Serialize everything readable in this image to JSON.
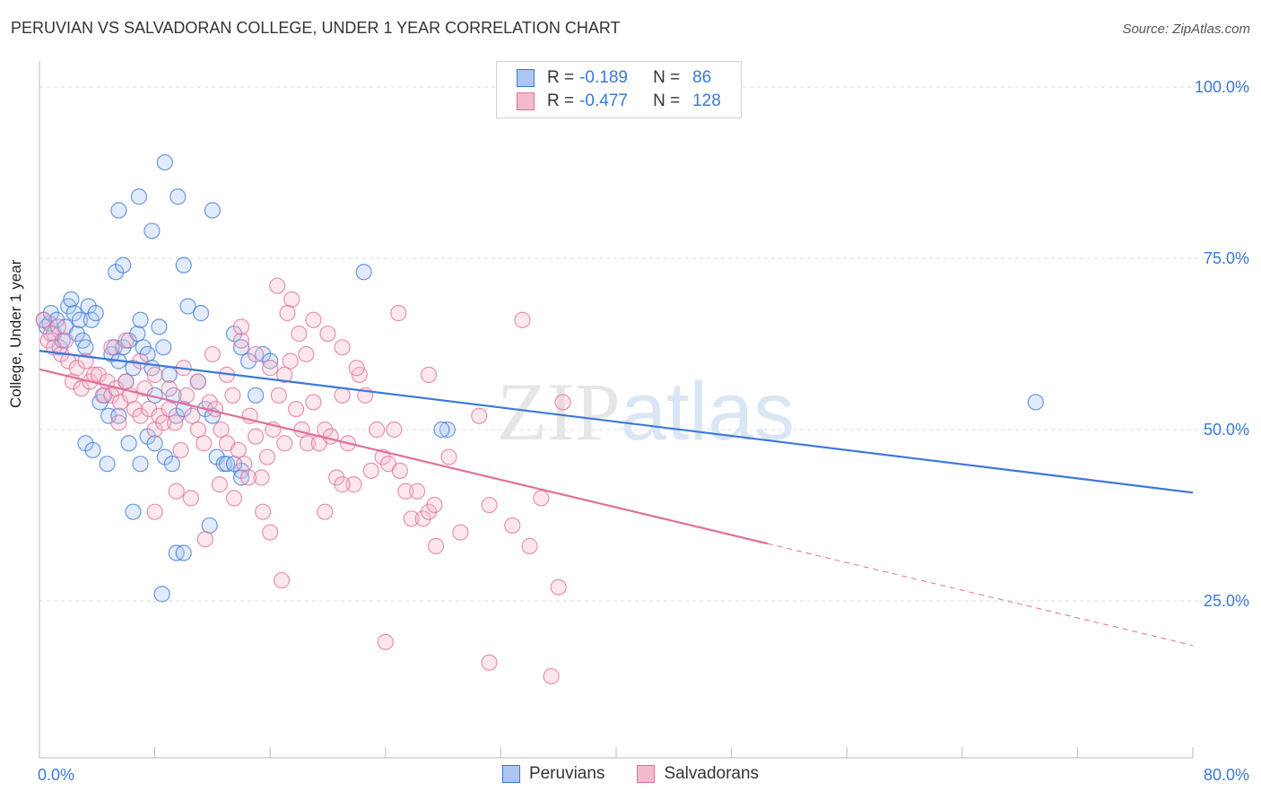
{
  "chart_data": {
    "type": "scatter",
    "title": "PERUVIAN VS SALVADORAN COLLEGE, UNDER 1 YEAR CORRELATION CHART",
    "source": "Source: ZipAtlas.com",
    "xlabel": "",
    "ylabel": "College, Under 1 year",
    "xlim": [
      0,
      80
    ],
    "ylim": [
      0,
      105
    ],
    "x_tick_labels": {
      "min": "0.0%",
      "max": "80.0%"
    },
    "y_ticks": [
      {
        "value": 100,
        "label": "100.0%"
      },
      {
        "value": 75,
        "label": "75.0%"
      },
      {
        "value": 50,
        "label": "50.0%"
      },
      {
        "value": 25,
        "label": "25.0%"
      }
    ],
    "watermark": "ZIPatlas",
    "legend": [
      {
        "name": "Peruvians",
        "r_label": "R =",
        "r": "-0.189",
        "n_label": "N =",
        "n": "86",
        "color": "#3b78d8",
        "fill": "#a9c7f0"
      },
      {
        "name": "Salvadorans",
        "r_label": "R =",
        "r": "-0.477",
        "n_label": "N =",
        "n": "128",
        "color": "#e0709a",
        "fill": "#f5b9cc"
      }
    ],
    "series": [
      {
        "name": "Peruvians",
        "trend": {
          "x0": 0,
          "y0": 61.5,
          "x1": 80,
          "y1": 40.8,
          "solid_to": 80
        },
        "points": [
          [
            0.3,
            66
          ],
          [
            0.5,
            65
          ],
          [
            0.7,
            65.5
          ],
          [
            0.8,
            67
          ],
          [
            1,
            64
          ],
          [
            1.2,
            66
          ],
          [
            1.4,
            62
          ],
          [
            1.6,
            63
          ],
          [
            1.8,
            65
          ],
          [
            2,
            68
          ],
          [
            2.2,
            69
          ],
          [
            2.4,
            67
          ],
          [
            2.6,
            64
          ],
          [
            2.8,
            66
          ],
          [
            3,
            63
          ],
          [
            3.2,
            62
          ],
          [
            3.4,
            68
          ],
          [
            3.6,
            66
          ],
          [
            3.9,
            67
          ],
          [
            4.2,
            54
          ],
          [
            4.5,
            55
          ],
          [
            4.8,
            52
          ],
          [
            5,
            61
          ],
          [
            5.2,
            62
          ],
          [
            5.5,
            60
          ],
          [
            5.8,
            62
          ],
          [
            6,
            57
          ],
          [
            6.2,
            63
          ],
          [
            6.5,
            59
          ],
          [
            6.8,
            64
          ],
          [
            7,
            66
          ],
          [
            7.2,
            62
          ],
          [
            7.5,
            61
          ],
          [
            7.8,
            59
          ],
          [
            8,
            55
          ],
          [
            8.3,
            65
          ],
          [
            8.6,
            62
          ],
          [
            9,
            58
          ],
          [
            9.3,
            55
          ],
          [
            9.5,
            52
          ],
          [
            10,
            53
          ],
          [
            10.3,
            68
          ],
          [
            11,
            57
          ],
          [
            11.2,
            67
          ],
          [
            11.5,
            53
          ],
          [
            12,
            52
          ],
          [
            12.3,
            46
          ],
          [
            12.8,
            45
          ],
          [
            13.5,
            64
          ],
          [
            14,
            62
          ],
          [
            14.5,
            60
          ],
          [
            15,
            55
          ],
          [
            15.5,
            61
          ],
          [
            16,
            60
          ],
          [
            3.2,
            48
          ],
          [
            3.7,
            47
          ],
          [
            4.7,
            45
          ],
          [
            5.5,
            52
          ],
          [
            6.2,
            48
          ],
          [
            7,
            45
          ],
          [
            7.5,
            49
          ],
          [
            8,
            48
          ],
          [
            8.7,
            46
          ],
          [
            9.2,
            45
          ],
          [
            6.5,
            38
          ],
          [
            8.5,
            26
          ],
          [
            9.5,
            32
          ],
          [
            10,
            32
          ],
          [
            11.8,
            36
          ],
          [
            14,
            44
          ],
          [
            5.5,
            82
          ],
          [
            6.9,
            84
          ],
          [
            7.8,
            79
          ],
          [
            8.7,
            89
          ],
          [
            9.6,
            84
          ],
          [
            12,
            82
          ],
          [
            10,
            74
          ],
          [
            5.3,
            73
          ],
          [
            5.8,
            74
          ],
          [
            22.5,
            73
          ],
          [
            28.3,
            50
          ],
          [
            27.9,
            50
          ],
          [
            69.1,
            54
          ],
          [
            13,
            45
          ],
          [
            13.5,
            45
          ],
          [
            14,
            43
          ]
        ]
      },
      {
        "name": "Salvadorans",
        "trend": {
          "x0": 0,
          "y0": 58.8,
          "x1": 80,
          "y1": 18.5,
          "solid_to": 50.5
        },
        "points": [
          [
            0.3,
            66
          ],
          [
            0.6,
            63
          ],
          [
            0.8,
            64
          ],
          [
            1,
            62
          ],
          [
            1.3,
            65
          ],
          [
            1.5,
            61
          ],
          [
            1.8,
            63
          ],
          [
            2,
            60
          ],
          [
            2.3,
            57
          ],
          [
            2.6,
            59
          ],
          [
            2.9,
            56
          ],
          [
            3.2,
            60
          ],
          [
            3.5,
            57
          ],
          [
            3.8,
            58
          ],
          [
            4.1,
            58
          ],
          [
            4.4,
            55
          ],
          [
            4.7,
            57
          ],
          [
            5,
            55
          ],
          [
            5.3,
            56
          ],
          [
            5.6,
            54
          ],
          [
            6,
            57
          ],
          [
            6.3,
            55
          ],
          [
            6.6,
            53
          ],
          [
            7,
            52
          ],
          [
            7.3,
            56
          ],
          [
            7.6,
            53
          ],
          [
            8,
            50
          ],
          [
            8.3,
            52
          ],
          [
            8.6,
            51
          ],
          [
            9,
            53
          ],
          [
            9.4,
            51
          ],
          [
            9.8,
            47
          ],
          [
            10.2,
            55
          ],
          [
            10.6,
            52
          ],
          [
            11,
            50
          ],
          [
            11.4,
            48
          ],
          [
            11.8,
            54
          ],
          [
            12.2,
            53
          ],
          [
            12.6,
            50
          ],
          [
            13,
            48
          ],
          [
            13.4,
            55
          ],
          [
            13.8,
            47
          ],
          [
            14.2,
            45
          ],
          [
            14.6,
            52
          ],
          [
            15,
            49
          ],
          [
            15.4,
            43
          ],
          [
            15.8,
            46
          ],
          [
            16.2,
            50
          ],
          [
            16.6,
            55
          ],
          [
            17,
            48
          ],
          [
            17.4,
            60
          ],
          [
            17.8,
            53
          ],
          [
            18.2,
            50
          ],
          [
            18.6,
            48
          ],
          [
            19,
            54
          ],
          [
            19.4,
            48
          ],
          [
            19.8,
            50
          ],
          [
            20.2,
            49
          ],
          [
            20.6,
            43
          ],
          [
            21,
            55
          ],
          [
            21.4,
            48
          ],
          [
            21.8,
            42
          ],
          [
            22.2,
            58
          ],
          [
            22.6,
            55
          ],
          [
            23,
            44
          ],
          [
            23.4,
            50
          ],
          [
            23.8,
            46
          ],
          [
            24.2,
            45
          ],
          [
            24.6,
            50
          ],
          [
            25,
            44
          ],
          [
            25.4,
            41
          ],
          [
            25.8,
            37
          ],
          [
            26.2,
            41
          ],
          [
            26.6,
            37
          ],
          [
            27,
            38
          ],
          [
            27.4,
            39
          ],
          [
            28.4,
            46
          ],
          [
            29.2,
            35
          ],
          [
            30.5,
            52
          ],
          [
            31.2,
            39
          ],
          [
            32.8,
            36
          ],
          [
            34.8,
            40
          ],
          [
            36.3,
            54
          ],
          [
            5,
            62
          ],
          [
            6,
            63
          ],
          [
            7,
            60
          ],
          [
            8,
            58
          ],
          [
            9,
            56
          ],
          [
            10,
            59
          ],
          [
            11,
            57
          ],
          [
            12,
            61
          ],
          [
            13,
            58
          ],
          [
            14,
            63
          ],
          [
            15,
            61
          ],
          [
            16,
            59
          ],
          [
            17,
            58
          ],
          [
            18,
            64
          ],
          [
            19,
            66
          ],
          [
            20,
            64
          ],
          [
            21,
            62
          ],
          [
            16.5,
            71
          ],
          [
            17.5,
            69
          ],
          [
            17.2,
            67
          ],
          [
            14,
            65
          ],
          [
            24.9,
            67
          ],
          [
            22,
            59
          ],
          [
            27,
            58
          ],
          [
            33.5,
            66
          ],
          [
            18.5,
            61
          ],
          [
            8,
            38
          ],
          [
            9.5,
            41
          ],
          [
            10.5,
            40
          ],
          [
            11.5,
            34
          ],
          [
            12.5,
            42
          ],
          [
            13.5,
            40
          ],
          [
            14.5,
            43
          ],
          [
            15.5,
            38
          ],
          [
            16,
            35
          ],
          [
            16.8,
            28
          ],
          [
            19.8,
            38
          ],
          [
            21,
            42
          ],
          [
            24,
            19
          ],
          [
            27.5,
            33
          ],
          [
            31.2,
            16
          ],
          [
            35.5,
            14
          ],
          [
            36,
            27
          ],
          [
            34,
            33
          ],
          [
            5.5,
            51
          ]
        ]
      }
    ]
  }
}
